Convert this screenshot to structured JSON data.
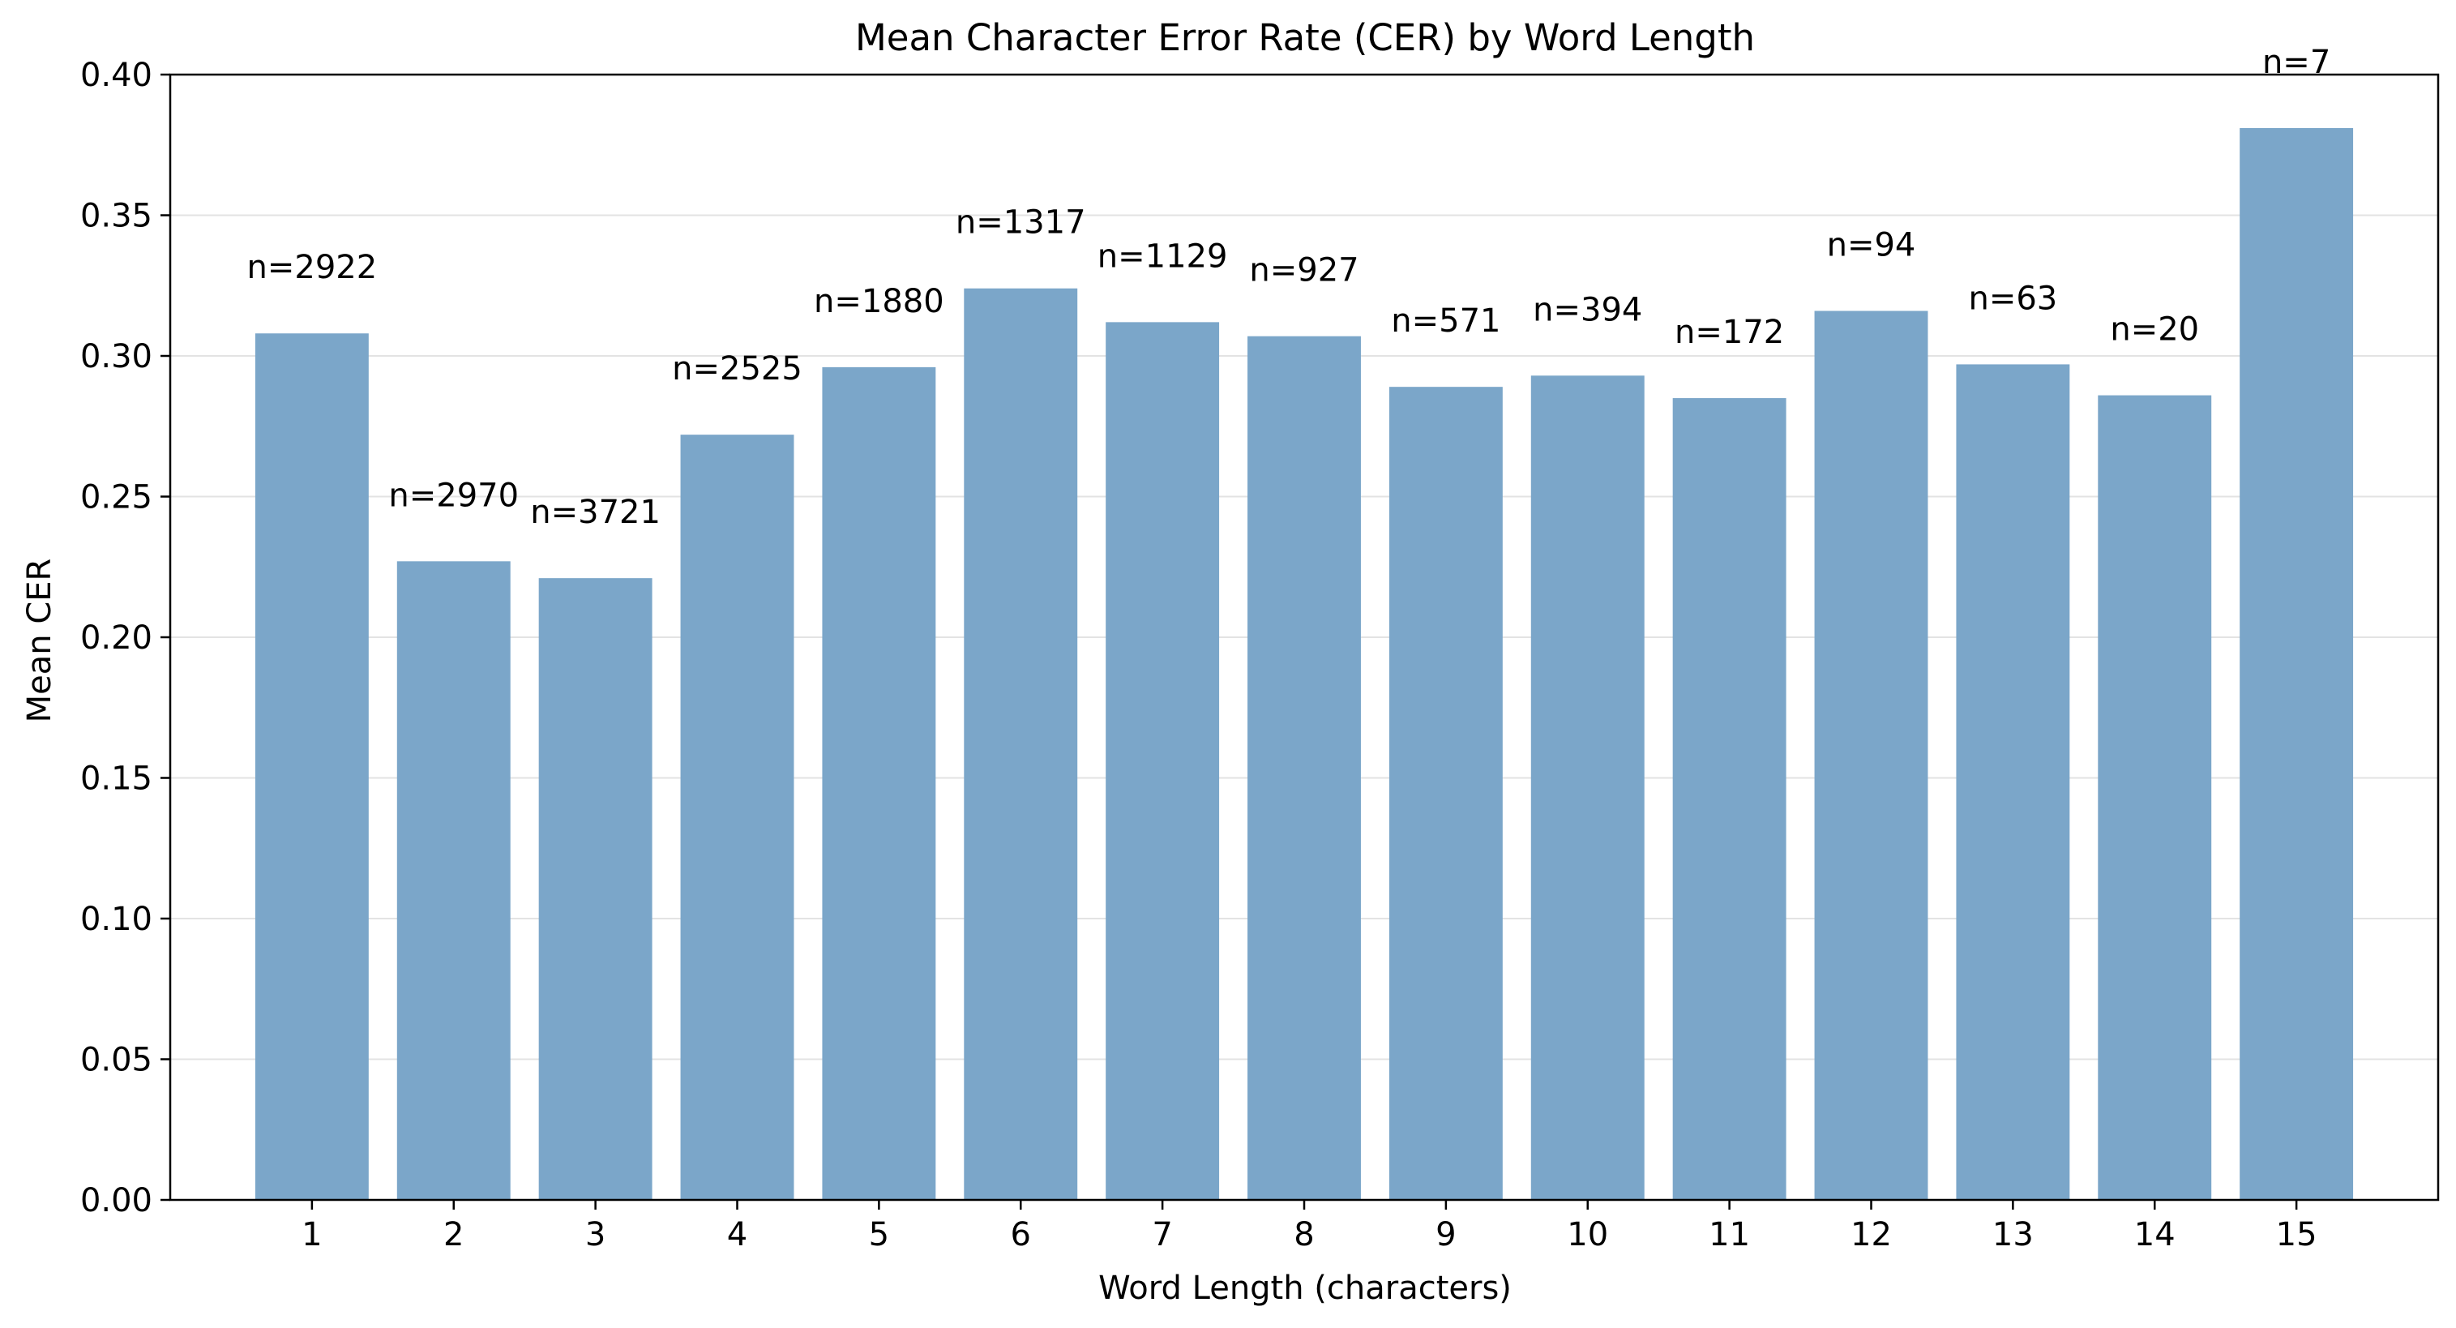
{
  "chart_data": {
    "type": "bar",
    "title": "Mean Character Error Rate (CER) by Word Length",
    "xlabel": "Word Length (characters)",
    "ylabel": "Mean CER",
    "categories": [
      "1",
      "2",
      "3",
      "4",
      "5",
      "6",
      "7",
      "8",
      "9",
      "10",
      "11",
      "12",
      "13",
      "14",
      "15"
    ],
    "values": [
      0.308,
      0.227,
      0.221,
      0.272,
      0.296,
      0.324,
      0.312,
      0.307,
      0.289,
      0.293,
      0.285,
      0.316,
      0.297,
      0.286,
      0.381
    ],
    "bar_labels": [
      "n=2922",
      "n=2970",
      "n=3721",
      "n=2525",
      "n=1880",
      "n=1317",
      "n=1129",
      "n=927",
      "n=571",
      "n=394",
      "n=172",
      "n=94",
      "n=63",
      "n=20",
      "n=7"
    ],
    "ylim": [
      0,
      0.4
    ],
    "yticks": [
      0.0,
      0.05,
      0.1,
      0.15,
      0.2,
      0.25,
      0.3,
      0.35,
      0.4
    ],
    "ytick_labels": [
      "0.00",
      "0.05",
      "0.10",
      "0.15",
      "0.20",
      "0.25",
      "0.30",
      "0.35",
      "0.40"
    ],
    "grid": "horizontal",
    "colors": {
      "bar": "#7ba6c9",
      "grid": "#e3e3e3",
      "axis": "#000000"
    }
  }
}
